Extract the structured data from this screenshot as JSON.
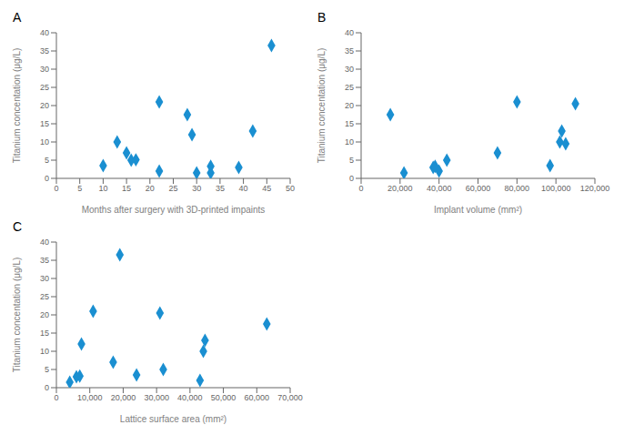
{
  "chart_data": [
    {
      "type": "scatter",
      "title": "A",
      "x": [
        10,
        13,
        15,
        16,
        17,
        22,
        22,
        28,
        29,
        30,
        33,
        33,
        39,
        42,
        46
      ],
      "values": [
        3.5,
        10,
        7,
        5,
        5.1,
        2,
        21,
        17.5,
        12,
        1.5,
        3.3,
        1.5,
        3,
        13,
        36.5
      ],
      "xlabel": "Months after surgery with 3D-printed impaints",
      "ylabel": "Titanium concentation (μg/L)",
      "xlim": [
        0,
        50
      ],
      "ylim": [
        0,
        40
      ],
      "xticks": [
        0,
        5,
        10,
        15,
        20,
        25,
        30,
        35,
        40,
        45,
        50
      ],
      "yticks": [
        0,
        5,
        10,
        15,
        20,
        25,
        30,
        35,
        40
      ],
      "color": "#1A8FD1",
      "marker": "diamond",
      "grid": false
    },
    {
      "type": "scatter",
      "title": "B",
      "x": [
        15000,
        22000,
        37000,
        38000,
        40000,
        44000,
        70000,
        80000,
        97000,
        102000,
        103000,
        105000,
        110000
      ],
      "values": [
        17.5,
        1.5,
        3,
        3.3,
        2,
        5,
        7,
        21,
        3.5,
        10,
        13,
        9.5,
        20.5
      ],
      "xlabel": "Implant volume (mm²)",
      "ylabel": "Titanium concentation (μg/L)",
      "xlim": [
        0,
        120000
      ],
      "ylim": [
        0,
        40
      ],
      "xticks": [
        0,
        {
          "value": 20000,
          "label": "20,000"
        },
        {
          "value": 40000,
          "label": "40,000"
        },
        {
          "value": 60000,
          "label": "60,000"
        },
        {
          "value": 80000,
          "label": "80,000"
        },
        {
          "value": 100000,
          "label": "100,000"
        },
        {
          "value": 120000,
          "label": "120,000"
        }
      ],
      "yticks": [
        0,
        5,
        10,
        15,
        20,
        25,
        30,
        35,
        40
      ],
      "color": "#1A8FD1",
      "marker": "diamond",
      "grid": false
    },
    {
      "type": "scatter",
      "title": "C",
      "x": [
        4000,
        6000,
        7000,
        7500,
        11000,
        17000,
        19000,
        24000,
        31000,
        32000,
        43000,
        44000,
        44500,
        63000
      ],
      "values": [
        1.5,
        3,
        3.2,
        12,
        21,
        7,
        36.5,
        3.5,
        20.5,
        5,
        2,
        10,
        13,
        17.5
      ],
      "xlabel": "Lattice surface area (mm²)",
      "ylabel": "Titanium concentation (μg/L)",
      "xlim": [
        0,
        70000
      ],
      "ylim": [
        0,
        40
      ],
      "xticks": [
        0,
        {
          "value": 10000,
          "label": "10,000"
        },
        {
          "value": 20000,
          "label": "20,000"
        },
        {
          "value": 30000,
          "label": "30,000"
        },
        {
          "value": 40000,
          "label": "40,000"
        },
        {
          "value": 50000,
          "label": "50,000"
        },
        {
          "value": 60000,
          "label": "60,000"
        },
        {
          "value": 70000,
          "label": "70,000"
        }
      ],
      "yticks": [
        0,
        5,
        10,
        15,
        20,
        25,
        30,
        35,
        40
      ],
      "color": "#1A8FD1",
      "marker": "diamond",
      "grid": false
    }
  ]
}
